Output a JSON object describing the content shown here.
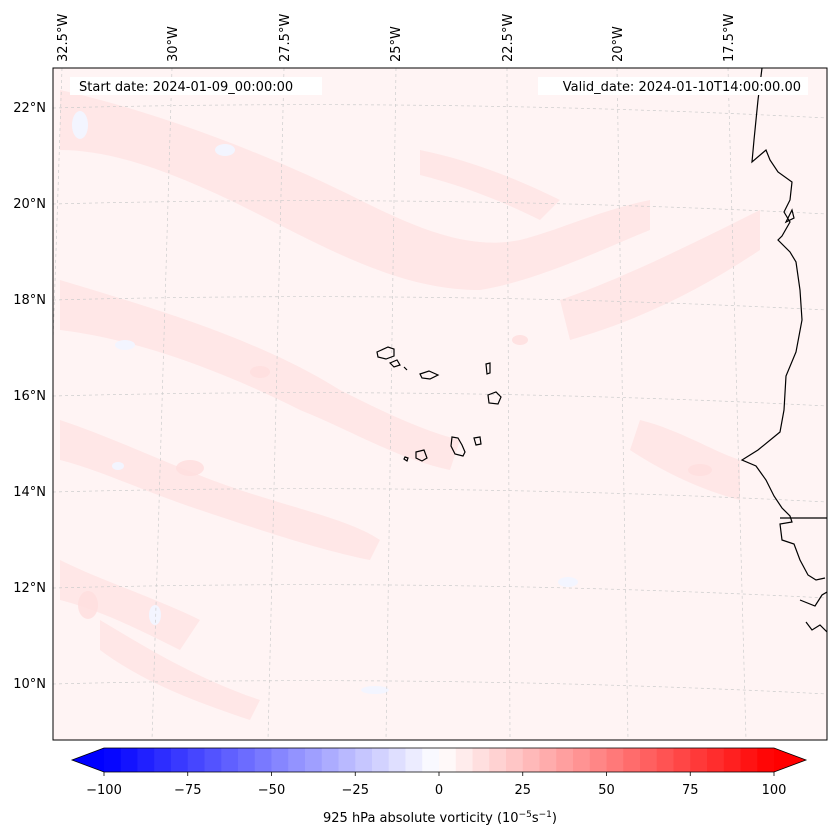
{
  "map": {
    "start_date": "Start date: 2024-01-09_00:00:00",
    "valid_date": "Valid_date: 2024-01-10T14:00:00.00",
    "lon_labels": [
      "32.5°W",
      "30°W",
      "27.5°W",
      "25°W",
      "22.5°W",
      "20°W",
      "17.5°W"
    ],
    "lat_labels": [
      "22°N",
      "20°N",
      "18°N",
      "16°N",
      "14°N",
      "12°N",
      "10°N"
    ]
  },
  "colorbar": {
    "label_prefix": "925 hPa absolute vorticity (10",
    "label_exp1": "−5",
    "label_mid": "s",
    "label_exp2": "−1",
    "label_suffix": ")",
    "ticks": [
      "−100",
      "−75",
      "−50",
      "−25",
      "0",
      "25",
      "50",
      "75",
      "100"
    ],
    "min": -100,
    "max": 100,
    "levels": 40,
    "low_color": "#0000ff",
    "high_color": "#ff0000"
  },
  "colors": {
    "field_base": "#fff4f4",
    "field_light": "#ffe9e9",
    "field_blue": "#f3f5ff",
    "coast": "#000000",
    "grid": "#cccccc"
  }
}
